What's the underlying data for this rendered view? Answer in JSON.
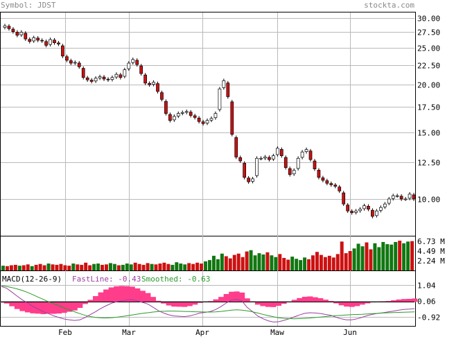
{
  "header": {
    "symbol_label": "Symbol: JDST",
    "site": "stockta.com"
  },
  "colors": {
    "up_body": "#ffffff",
    "down_body": "#cc1111",
    "candle_outline": "#000000",
    "volume_up": "#117711",
    "volume_down": "#cc1111",
    "grid": "#b9b9b9",
    "header_text": "#888888",
    "macd_hist": "#ff3d8b",
    "fast_line": "#9a3ea0",
    "smoothed_line": "#2a9a2a"
  },
  "chart_data": [
    {
      "type": "candlestick",
      "title": "Symbol: JDST",
      "x_tick_labels": [
        "Feb",
        "Mar",
        "Apr",
        "Maw",
        "Jun"
      ],
      "y_tick_labels": [
        "30.00",
        "27.50",
        "25.00",
        "22.50",
        "20.00",
        "17.50",
        "15.00",
        "12.50",
        "10.00"
      ],
      "ylim": [
        8.0,
        31.0
      ],
      "y_scale": "log",
      "grid": true,
      "closes": [
        28.6,
        28.1,
        27.6,
        27.0,
        27.5,
        26.4,
        26.0,
        26.6,
        26.2,
        26.1,
        25.4,
        26.3,
        25.8,
        25.6,
        23.8,
        23.2,
        22.8,
        22.9,
        22.3,
        20.9,
        20.6,
        20.4,
        20.8,
        21.0,
        20.7,
        20.6,
        20.9,
        21.3,
        20.9,
        21.9,
        22.8,
        23.3,
        22.6,
        21.4,
        20.2,
        20.0,
        20.3,
        19.2,
        18.3,
        16.8,
        16.1,
        16.5,
        16.8,
        16.9,
        17.0,
        16.6,
        16.4,
        16.0,
        15.8,
        16.1,
        16.3,
        16.8,
        19.5,
        20.5,
        18.6,
        14.8,
        12.9,
        12.6,
        11.4,
        11.1,
        11.3,
        12.8,
        12.8,
        12.9,
        12.7,
        13.0,
        13.6,
        13.0,
        12.1,
        11.6,
        11.9,
        12.8,
        13.3,
        13.5,
        12.7,
        12.0,
        11.4,
        11.2,
        11.0,
        10.9,
        10.8,
        10.5,
        9.7,
        9.3,
        9.2,
        9.3,
        9.4,
        9.6,
        9.4,
        9.0,
        9.3,
        9.5,
        9.7,
        10.0,
        10.2,
        10.2,
        10.0,
        10.0,
        10.3,
        10.0
      ],
      "volume": {
        "unit": "M",
        "y_tick_labels": [
          "6.73 M",
          "4.49 M",
          "2.24 M"
        ],
        "ymax": 7.4,
        "values": [
          1.1,
          1.0,
          1.2,
          1.3,
          1.1,
          1.2,
          1.4,
          1.0,
          1.3,
          1.5,
          1.2,
          1.6,
          1.4,
          1.3,
          1.5,
          1.2,
          1.1,
          1.6,
          1.4,
          1.3,
          1.8,
          1.2,
          1.5,
          1.6,
          1.3,
          1.4,
          1.7,
          1.5,
          1.2,
          1.3,
          1.6,
          1.4,
          1.8,
          1.5,
          1.3,
          1.7,
          1.5,
          1.4,
          1.6,
          1.8,
          1.5,
          1.3,
          1.9,
          1.6,
          1.4,
          1.7,
          1.5,
          1.8,
          1.6,
          2.1,
          2.4,
          3.4,
          2.6,
          3.9,
          3.3,
          2.8,
          3.6,
          3.9,
          3.1,
          4.4,
          4.7,
          3.5,
          4.0,
          3.7,
          4.2,
          3.5,
          3.1,
          3.8,
          2.9,
          2.5,
          3.2,
          2.7,
          2.4,
          3.0,
          2.6,
          3.5,
          4.3,
          3.6,
          3.1,
          3.4,
          3.0,
          3.8,
          6.7,
          4.0,
          4.5,
          5.1,
          6.2,
          5.6,
          6.5,
          4.9,
          6.3,
          5.4,
          6.6,
          6.1,
          6.0,
          6.6,
          6.9,
          6.3,
          6.7,
          6.8
        ]
      }
    },
    {
      "type": "line",
      "title": "MACD(12-26-9)",
      "legend": [
        {
          "label": "FastLine: -0.43",
          "color": "#9a3ea0"
        },
        {
          "label": "Smoothed: -0.63",
          "color": "#2a9a2a"
        }
      ],
      "y_tick_labels": [
        "1.04",
        "0.06",
        "-0.92"
      ],
      "ylim": [
        -1.5,
        1.6
      ],
      "fast": [
        0.95,
        0.84,
        0.6,
        0.35,
        0.12,
        -0.08,
        -0.28,
        -0.45,
        -0.62,
        -0.74,
        -0.87,
        -0.98,
        -1.07,
        -1.12,
        -1.16,
        -1.12,
        -0.98,
        -0.8,
        -0.62,
        -0.42,
        -0.25,
        -0.1,
        0.0,
        0.06,
        0.1,
        0.12,
        0.06,
        -0.04,
        -0.14,
        -0.34,
        -0.55,
        -0.7,
        -0.81,
        -0.88,
        -0.9,
        -0.92,
        -0.88,
        -0.8,
        -0.7,
        -0.66,
        -0.6,
        -0.48,
        -0.3,
        -0.08,
        0.1,
        0.14,
        0.05,
        -0.35,
        -0.6,
        -0.88,
        -1.05,
        -1.18,
        -1.26,
        -1.24,
        -1.16,
        -1.06,
        -0.94,
        -0.82,
        -0.72,
        -0.68,
        -0.7,
        -0.73,
        -0.79,
        -0.84,
        -0.96,
        -1.06,
        -1.12,
        -1.12,
        -1.06,
        -0.96,
        -0.86,
        -0.78,
        -0.72,
        -0.68,
        -0.63,
        -0.58,
        -0.52,
        -0.48,
        -0.46,
        -0.43
      ],
      "smoothed": [
        1.0,
        0.95,
        0.88,
        0.8,
        0.7,
        0.58,
        0.44,
        0.29,
        0.15,
        0.0,
        -0.12,
        -0.25,
        -0.38,
        -0.5,
        -0.62,
        -0.74,
        -0.84,
        -0.92,
        -0.97,
        -1.0,
        -1.01,
        -0.99,
        -0.96,
        -0.92,
        -0.87,
        -0.82,
        -0.77,
        -0.72,
        -0.68,
        -0.64,
        -0.61,
        -0.59,
        -0.58,
        -0.58,
        -0.59,
        -0.6,
        -0.61,
        -0.62,
        -0.63,
        -0.64,
        -0.64,
        -0.63,
        -0.6,
        -0.56,
        -0.52,
        -0.5,
        -0.52,
        -0.56,
        -0.62,
        -0.7,
        -0.78,
        -0.86,
        -0.93,
        -0.99,
        -1.03,
        -1.05,
        -1.06,
        -1.05,
        -1.03,
        -1.01,
        -0.98,
        -0.95,
        -0.92,
        -0.89,
        -0.86,
        -0.84,
        -0.82,
        -0.8,
        -0.79,
        -0.78,
        -0.76,
        -0.74,
        -0.72,
        -0.7,
        -0.68,
        -0.67,
        -0.66,
        -0.65,
        -0.64,
        -0.63
      ]
    }
  ]
}
